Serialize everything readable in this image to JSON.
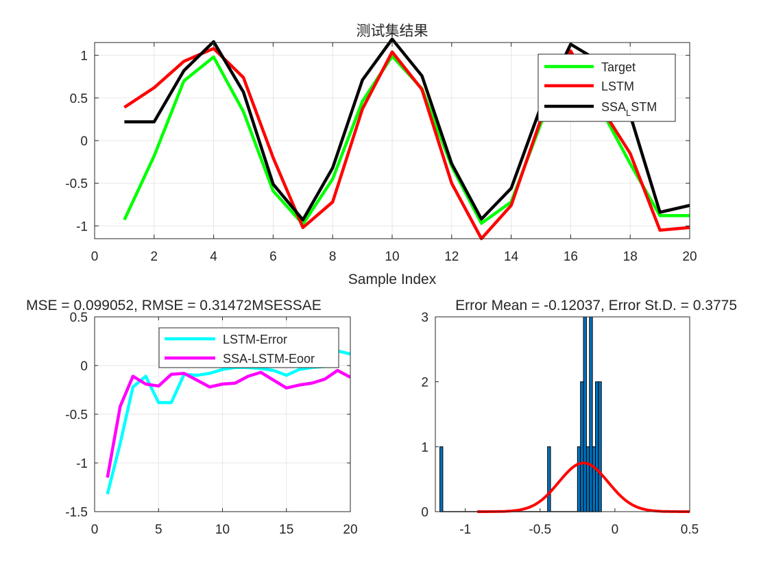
{
  "chart_data": [
    {
      "type": "line",
      "title": "测试集结果",
      "xlabel": "Sample Index",
      "ylabel": "",
      "xlim": [
        0,
        20
      ],
      "ylim": [
        -1.15,
        1.15
      ],
      "xticks": [
        "0",
        "2",
        "4",
        "6",
        "8",
        "10",
        "12",
        "14",
        "16",
        "18",
        "20"
      ],
      "yticks": [
        "1",
        "0.5",
        "0",
        "-0.5",
        "-1"
      ],
      "grid": true,
      "legend_position": "top-right",
      "legend": [
        {
          "label": "Target",
          "sub": "",
          "rest": ""
        },
        {
          "label": "LSTM",
          "sub": "",
          "rest": ""
        },
        {
          "label": "SSA",
          "sub": "L",
          "rest": "STM"
        }
      ],
      "x": [
        1,
        2,
        3,
        4,
        5,
        6,
        7,
        8,
        9,
        10,
        11,
        12,
        13,
        14,
        15,
        16,
        17,
        18,
        19,
        20
      ],
      "series": [
        {
          "color": "#00ff00",
          "values": [
            -0.93,
            -0.18,
            0.7,
            0.98,
            0.34,
            -0.59,
            -0.98,
            -0.45,
            0.46,
            0.99,
            0.61,
            -0.3,
            -0.97,
            -0.72,
            0.2,
            1.0,
            0.38,
            -0.27,
            -0.88,
            -0.88
          ]
        },
        {
          "color": "#ff0000",
          "values": [
            0.39,
            0.62,
            0.93,
            1.08,
            0.74,
            -0.2,
            -1.02,
            -0.72,
            0.37,
            1.04,
            0.6,
            -0.5,
            -1.15,
            -0.76,
            0.25,
            1.05,
            0.4,
            -0.15,
            -1.05,
            -1.02
          ]
        },
        {
          "color": "#000000",
          "values": [
            0.22,
            0.22,
            0.82,
            1.16,
            0.57,
            -0.51,
            -0.93,
            -0.32,
            0.71,
            1.19,
            0.76,
            -0.27,
            -0.92,
            -0.56,
            0.4,
            1.13,
            0.92,
            0.3,
            -0.84,
            -0.76
          ]
        }
      ]
    },
    {
      "type": "line",
      "title": "MSE = 0.099052, RMSE = 0.31472MSESSAE",
      "xlabel": "",
      "ylabel": "",
      "xlim": [
        0,
        20
      ],
      "ylim": [
        -1.5,
        0.5
      ],
      "xticks": [
        "0",
        "5",
        "10",
        "15",
        "20"
      ],
      "yticks": [
        "0.5",
        "0",
        "-0.5",
        "-1",
        "-1.5"
      ],
      "grid": true,
      "legend_position": "top-right",
      "legend": [
        {
          "label": "LSTM-Error"
        },
        {
          "label": "SSA-LSTM-Eoor"
        }
      ],
      "x": [
        1,
        2,
        3,
        4,
        5,
        6,
        7,
        8,
        9,
        10,
        11,
        12,
        13,
        14,
        15,
        16,
        17,
        18,
        19,
        20
      ],
      "series": [
        {
          "color": "#00ffff",
          "values": [
            -1.32,
            -0.8,
            -0.22,
            -0.11,
            -0.38,
            -0.38,
            -0.09,
            -0.1,
            -0.08,
            -0.04,
            -0.02,
            -0.02,
            -0.03,
            -0.05,
            -0.1,
            -0.04,
            -0.02,
            -0.01,
            0.15,
            0.12
          ]
        },
        {
          "color": "#ff00ff",
          "values": [
            -1.15,
            -0.42,
            -0.11,
            -0.19,
            -0.21,
            -0.09,
            -0.08,
            -0.15,
            -0.22,
            -0.19,
            -0.18,
            -0.11,
            -0.07,
            -0.15,
            -0.23,
            -0.2,
            -0.18,
            -0.14,
            -0.05,
            -0.12
          ]
        }
      ]
    },
    {
      "type": "histogram",
      "title": "Error Mean = -0.12037, Error St.D. = 0.3775",
      "xlabel": "",
      "ylabel": "",
      "xlim": [
        -1.2,
        0.5
      ],
      "ylim": [
        0,
        3
      ],
      "xticks": [
        "-1",
        "-0.5",
        "0",
        "0.5"
      ],
      "yticks": [
        "3",
        "2",
        "1",
        "0"
      ],
      "grid": false,
      "bar_color": "#0072bd",
      "bins": [
        {
          "x0": -1.17,
          "x1": -1.15,
          "count": 1
        },
        {
          "x0": -0.45,
          "x1": -0.43,
          "count": 1
        },
        {
          "x0": -0.25,
          "x1": -0.23,
          "count": 1
        },
        {
          "x0": -0.23,
          "x1": -0.21,
          "count": 2
        },
        {
          "x0": -0.21,
          "x1": -0.19,
          "count": 3
        },
        {
          "x0": -0.19,
          "x1": -0.17,
          "count": 1
        },
        {
          "x0": -0.17,
          "x1": -0.15,
          "count": 3
        },
        {
          "x0": -0.15,
          "x1": -0.13,
          "count": 1
        },
        {
          "x0": -0.13,
          "x1": -0.11,
          "count": 2
        },
        {
          "x0": -0.11,
          "x1": -0.09,
          "count": 2
        }
      ],
      "fit_curve": {
        "color": "#ff0000",
        "x_range": [
          -0.92,
          0.5
        ],
        "peak": 0.75,
        "mean": -0.21,
        "sd": 0.165
      }
    }
  ]
}
